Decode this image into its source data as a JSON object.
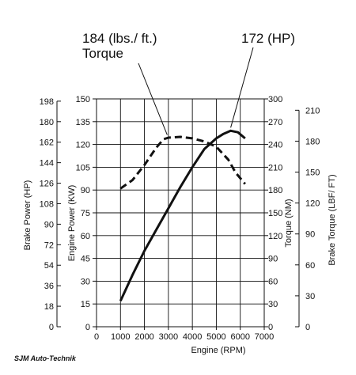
{
  "chart_data": {
    "type": "line",
    "xlabel": "Engine (RPM)",
    "x_ticks": [
      0,
      1000,
      2000,
      3000,
      4000,
      5000,
      6000,
      7000
    ],
    "xlim": [
      0,
      7000
    ],
    "axes": {
      "brake_power": {
        "label": "Brake Power (HP)",
        "lim": [
          0,
          200
        ],
        "ticks": [
          0,
          18,
          36,
          54,
          72,
          90,
          108,
          126,
          144,
          162,
          180,
          198
        ]
      },
      "engine_power": {
        "label": "Engine Power (KW)",
        "lim": [
          0,
          150
        ],
        "ticks": [
          0,
          15,
          30,
          45,
          60,
          75,
          90,
          105,
          120,
          135,
          150
        ]
      },
      "torque_nm": {
        "label": "Torque (NM)",
        "lim": [
          0,
          300
        ],
        "ticks": [
          0,
          30,
          60,
          90,
          120,
          150,
          180,
          210,
          240,
          270,
          300
        ]
      },
      "brake_torque": {
        "label": "Brake Torque (LBF/ FT)",
        "lim": [
          0,
          221
        ],
        "ticks": [
          0,
          30,
          60,
          90,
          120,
          150,
          180,
          210
        ]
      }
    },
    "grid": true,
    "series": [
      {
        "id": "power",
        "axis": "engine_power",
        "style": "solid",
        "x": [
          1000,
          1500,
          2000,
          2500,
          3000,
          3500,
          4000,
          4500,
          5000,
          5300,
          5600,
          5900,
          6200
        ],
        "y": [
          17,
          34,
          50,
          64,
          78,
          92,
          105,
          117,
          124,
          127,
          129,
          128,
          124
        ]
      },
      {
        "id": "torque",
        "axis": "torque_nm",
        "style": "dashed",
        "x": [
          1000,
          1500,
          2000,
          2500,
          2800,
          3000,
          3500,
          4000,
          4500,
          5000,
          5500,
          5800,
          6200
        ],
        "y": [
          182,
          193,
          213,
          236,
          247,
          249,
          250,
          248,
          244,
          237,
          220,
          203,
          188
        ]
      }
    ],
    "annotations": [
      {
        "line1": "184 (lbs./ ft.)",
        "line2": "Torque",
        "target_x": 2950,
        "target_series": "torque"
      },
      {
        "line1": "172 (HP)",
        "target_x": 5600,
        "target_series": "power"
      }
    ],
    "credit": "SJM Auto-Technik"
  },
  "colors": {
    "grid": "#111111",
    "curve": "#111111",
    "background": "#ffffff"
  }
}
